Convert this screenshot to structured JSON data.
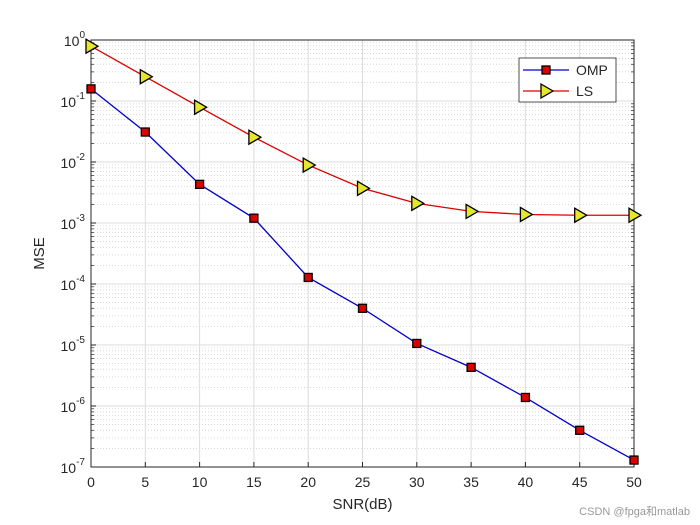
{
  "chart_data": {
    "type": "line",
    "title": "",
    "xlabel": "SNR(dB)",
    "ylabel": "MSE",
    "xlim": [
      0,
      50
    ],
    "ylim_log10": [
      -7,
      0
    ],
    "yscale": "log",
    "grid": true,
    "minor_grid": true,
    "legend_position": "top-right",
    "x": [
      0,
      5,
      10,
      15,
      20,
      25,
      30,
      35,
      40,
      45,
      50
    ],
    "x_ticks": [
      "0",
      "5",
      "10",
      "15",
      "20",
      "25",
      "30",
      "35",
      "40",
      "45",
      "50"
    ],
    "y_tick_exponents": [
      "0",
      "-1",
      "-2",
      "-3",
      "-4",
      "-5",
      "-6",
      "-7"
    ],
    "y_tick_base": "10",
    "series": [
      {
        "name": "OMP",
        "color": "#0000cc",
        "marker": "square",
        "marker_fill": "#dd0000",
        "values": [
          0.158,
          0.031,
          0.0043,
          0.0012,
          0.000128,
          4e-05,
          1.06e-05,
          4.3e-06,
          1.38e-06,
          4e-07,
          1.3e-07
        ]
      },
      {
        "name": "LS",
        "color": "#dd0000",
        "marker": "triangle-right",
        "marker_fill": "#e6e62a",
        "values": [
          0.79,
          0.25,
          0.079,
          0.0255,
          0.0089,
          0.0037,
          0.0021,
          0.00155,
          0.00138,
          0.00134,
          0.00134
        ]
      }
    ]
  },
  "watermark": "CSDN @fpga和matlab"
}
